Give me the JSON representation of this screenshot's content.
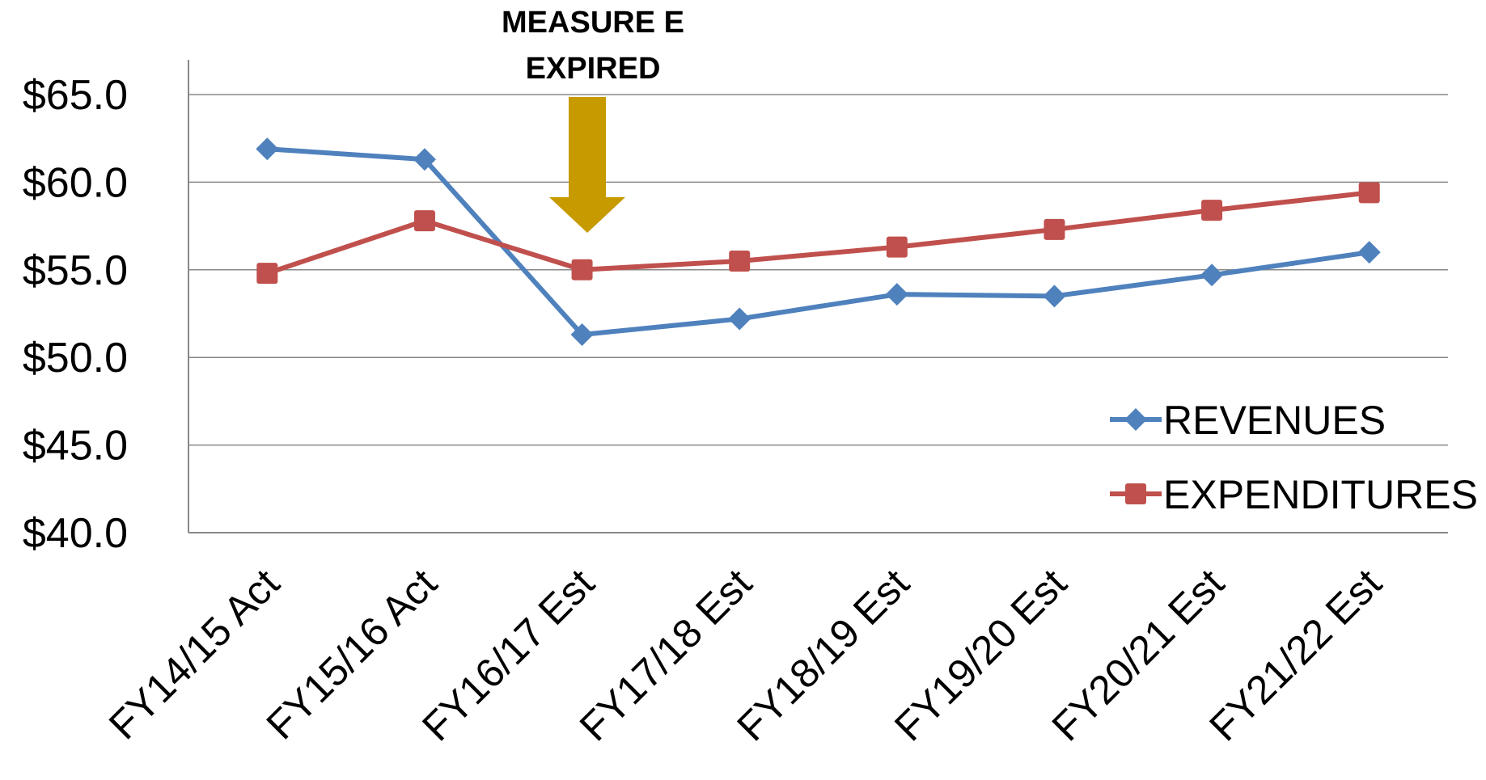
{
  "chart_data": {
    "type": "line",
    "categories": [
      "FY14/15 Act",
      "FY15/16 Act",
      "FY16/17 Est",
      "FY17/18 Est",
      "FY18/19 Est",
      "FY19/20 Est",
      "FY20/21 Est",
      "FY21/22 Est"
    ],
    "series": [
      {
        "name": "REVENUES",
        "values": [
          61.9,
          61.3,
          51.3,
          52.2,
          53.6,
          53.5,
          54.7,
          56.0
        ],
        "color": "#4f81bd",
        "marker": "diamond"
      },
      {
        "name": "EXPENDITURES",
        "values": [
          54.8,
          57.8,
          55.0,
          55.5,
          56.3,
          57.3,
          58.4,
          59.4
        ],
        "color": "#c0504d",
        "marker": "square"
      }
    ],
    "ylim": [
      40,
      67
    ],
    "yticks": [
      40,
      45,
      50,
      55,
      60,
      65
    ],
    "ytick_labels": [
      "$40.0",
      "$45.0",
      "$50.0",
      "$55.0",
      "$60.0",
      "$65.0"
    ],
    "grid": true,
    "legend_position": "bottom-right",
    "annotation": {
      "lines": [
        "MEASURE E",
        "EXPIRED"
      ],
      "category": "FY16/17 Est",
      "arrow_color": "#c79a00"
    }
  }
}
